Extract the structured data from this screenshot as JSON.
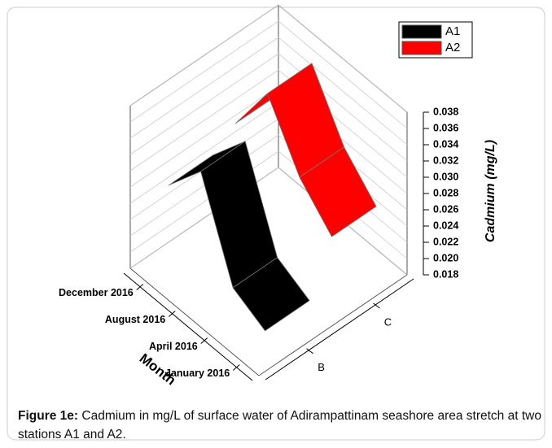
{
  "chart_data": {
    "type": "ribbon3d",
    "xlabel": "Month",
    "ylabel": "Cadmium (mg/L)",
    "categories": [
      "January 2016",
      "April 2016",
      "August 2016",
      "December 2016"
    ],
    "stations": [
      "B",
      "C"
    ],
    "series": [
      {
        "name": "A1",
        "color": "#000000",
        "values": [
          0.02,
          0.022,
          0.033,
          0.028
        ]
      },
      {
        "name": "A2",
        "color": "#ff0000",
        "values": [
          0.026,
          0.03,
          0.037,
          0.03
        ]
      }
    ],
    "ylim": [
      0.018,
      0.038
    ],
    "yticks": [
      0.018,
      {
        "value": 0.02,
        "label": "0.020"
      },
      0.022,
      0.024,
      0.026,
      0.028,
      {
        "value": 0.03,
        "label": "0.030"
      },
      0.032,
      0.034,
      0.036,
      0.038
    ],
    "grid": true,
    "legend": "upper right"
  },
  "caption": {
    "label": "Figure 1e:",
    "text": " Cadmium in mg/L of surface water of Adirampattinam seashore area stretch at two stations A1 and A2."
  }
}
